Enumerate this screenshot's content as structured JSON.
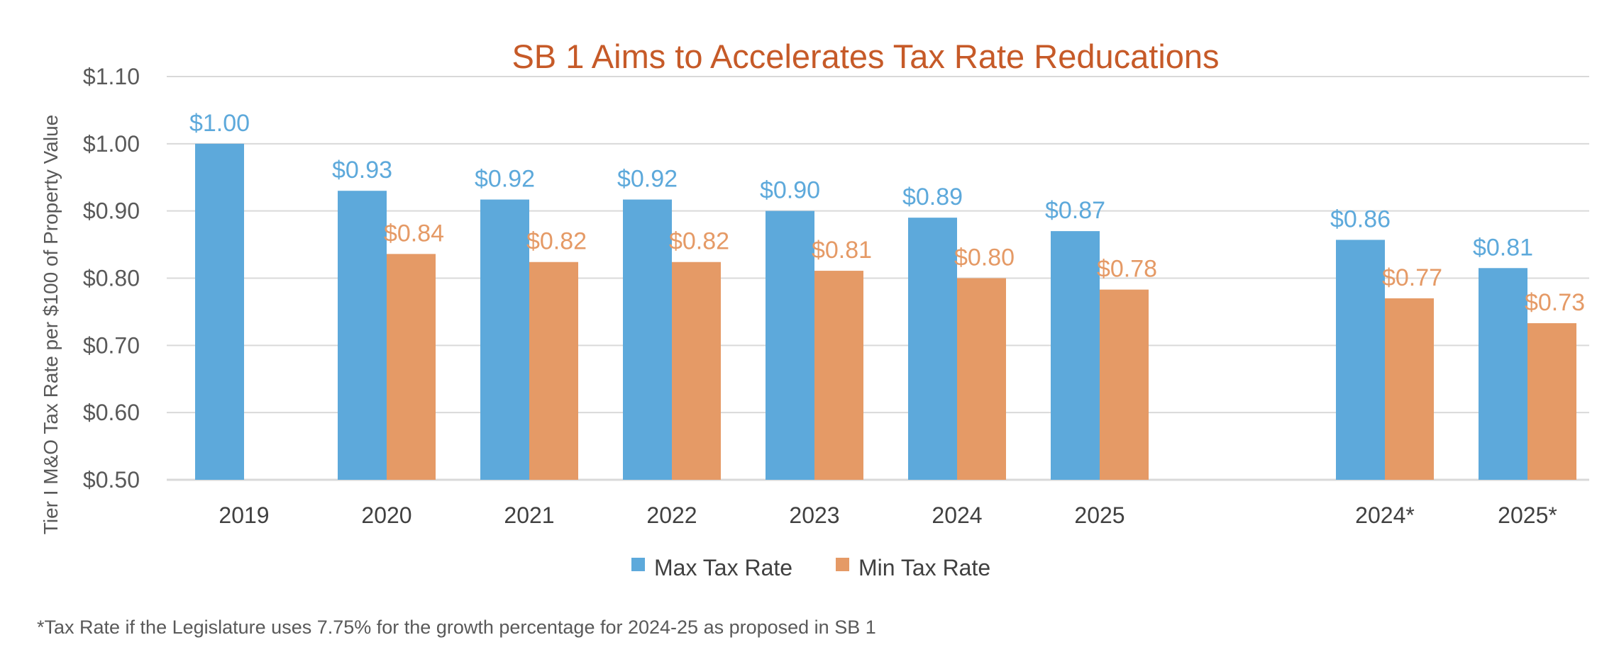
{
  "chart_data": {
    "type": "bar",
    "title": "SB 1 Aims to Accelerates Tax Rate Reducations",
    "ylabel": "Tier I M&O Tax Rate per $100 of Property Value",
    "xlabel": "",
    "ylim": [
      0.5,
      1.1
    ],
    "y_ticks": [
      1.1,
      1.0,
      0.9,
      0.8,
      0.7,
      0.6,
      0.5
    ],
    "y_tick_labels": [
      "$1.10",
      "$1.00",
      "$0.90",
      "$0.80",
      "$0.70",
      "$0.60",
      "$0.50"
    ],
    "grid": true,
    "legend_position": "bottom",
    "categories": [
      "2019",
      "2020",
      "2021",
      "2022",
      "2023",
      "2024",
      "2025",
      "2024*",
      "2025*"
    ],
    "category_gap_before": [
      false,
      false,
      false,
      false,
      false,
      false,
      false,
      true,
      false
    ],
    "series": [
      {
        "name": "Max Tax Rate",
        "color": "#5DA9DB",
        "label_color": "#5DA9DB",
        "values": [
          1.0,
          0.93,
          0.917,
          0.917,
          0.9,
          0.89,
          0.87,
          0.857,
          0.815
        ],
        "labels": [
          "$1.00",
          "$0.93",
          "$0.92",
          "$0.92",
          "$0.90",
          "$0.89",
          "$0.87",
          "$0.86",
          "$0.81"
        ]
      },
      {
        "name": "Min Tax Rate",
        "color": "#E59A66",
        "label_color": "#E59A66",
        "values": [
          null,
          0.836,
          0.824,
          0.824,
          0.811,
          0.8,
          0.783,
          0.77,
          0.733
        ],
        "labels": [
          null,
          "$0.84",
          "$0.82",
          "$0.82",
          "$0.81",
          "$0.80",
          "$0.78",
          "$0.77",
          "$0.73"
        ]
      }
    ],
    "footnote": "*Tax Rate if the Legislature uses 7.75% for the growth percentage for 2024-25 as proposed in SB 1"
  }
}
